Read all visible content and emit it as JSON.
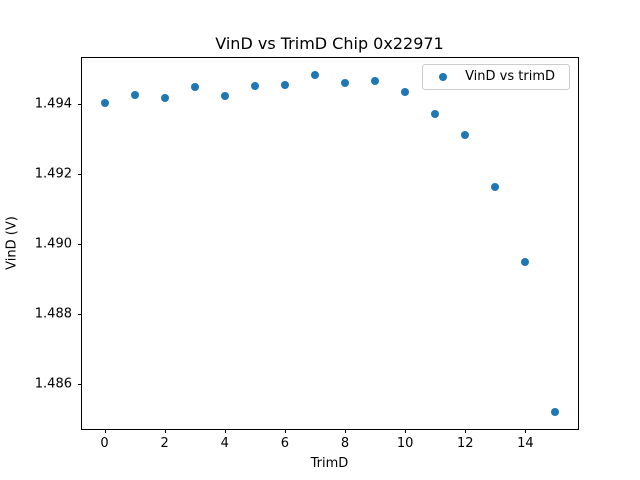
{
  "title": "VinD vs TrimD Chip 0x22971",
  "chart_data": {
    "type": "scatter",
    "title": "VinD vs TrimD Chip 0x22971",
    "xlabel": "TrimD",
    "ylabel": "VinD (V)",
    "series_name": "VinD vs trimD",
    "x": [
      0,
      1,
      2,
      3,
      4,
      5,
      6,
      7,
      8,
      9,
      10,
      11,
      12,
      13,
      14,
      15
    ],
    "y": [
      1.49402,
      1.49426,
      1.49418,
      1.49448,
      1.49424,
      1.49453,
      1.49454,
      1.49483,
      1.49461,
      1.49467,
      1.49435,
      1.49373,
      1.49311,
      1.49162,
      1.4895,
      1.48519
    ],
    "xlim": [
      -0.75,
      15.75
    ],
    "ylim": [
      1.48471,
      1.49532
    ],
    "xticks": [
      0,
      2,
      4,
      6,
      8,
      10,
      12,
      14
    ],
    "xtick_labels": [
      "0",
      "2",
      "4",
      "6",
      "8",
      "10",
      "12",
      "14"
    ],
    "yticks": [
      1.486,
      1.488,
      1.49,
      1.492,
      1.494
    ],
    "ytick_labels": [
      "1.486",
      "1.488",
      "1.490",
      "1.492",
      "1.494"
    ],
    "grid": false,
    "legend_position": "upper right",
    "marker_color": "#1f77b4",
    "background_color": "#ffffff",
    "spine_color": "#000000"
  }
}
